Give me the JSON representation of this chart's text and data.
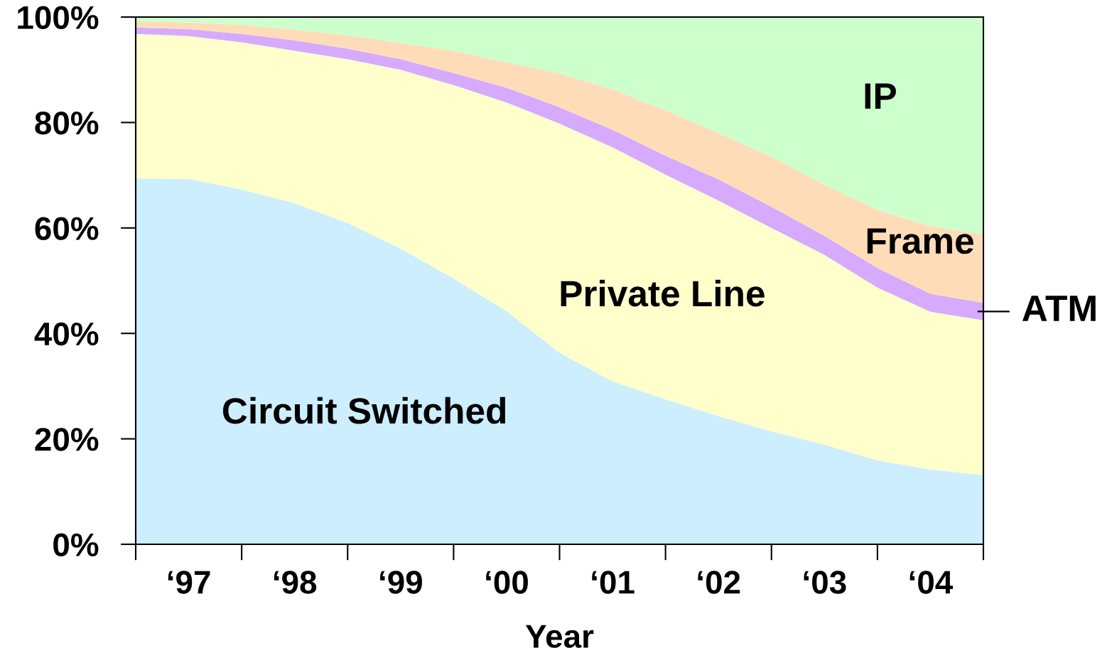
{
  "chart_data": {
    "type": "area",
    "stacked": true,
    "xlabel": "Year",
    "categories": [
      null,
      "‘97",
      null,
      "‘98",
      null,
      "‘99",
      null,
      "‘00",
      null,
      "‘01",
      null,
      "‘02",
      null,
      "‘03",
      null,
      "‘04",
      null
    ],
    "series": [
      {
        "name": "Circuit Switched",
        "color": "#cceeff",
        "values": [
          69.4,
          69.3,
          67.3,
          64.7,
          60.9,
          56.1,
          50.4,
          44.2,
          36.3,
          30.9,
          27.5,
          24.3,
          21.4,
          18.9,
          15.9,
          14.2,
          13.1
        ]
      },
      {
        "name": "Private Line",
        "color": "#ffffcc",
        "values": [
          27.4,
          27.1,
          27.9,
          28.9,
          31.1,
          33.9,
          36.7,
          39.6,
          43.5,
          44.4,
          42.6,
          40.9,
          38.6,
          36.0,
          32.8,
          29.9,
          29.4
        ]
      },
      {
        "name": "ATM",
        "color": "#d5aaff",
        "values": [
          1.2,
          1.3,
          1.6,
          2.0,
          2.0,
          2.0,
          2.3,
          2.8,
          3.1,
          3.3,
          3.6,
          4.0,
          4.0,
          3.6,
          3.7,
          3.4,
          3.3
        ]
      },
      {
        "name": "Frame",
        "color": "#ffdcb8",
        "values": [
          1.2,
          1.3,
          1.7,
          2.0,
          2.5,
          3.1,
          4.2,
          4.8,
          6.4,
          7.7,
          8.6,
          8.8,
          9.5,
          9.7,
          11.0,
          12.8,
          13.0
        ]
      },
      {
        "name": "IP",
        "color": "#ccffcc",
        "values": [
          0.8,
          1.0,
          1.5,
          2.4,
          3.5,
          4.9,
          6.4,
          8.6,
          10.7,
          13.7,
          17.7,
          22.0,
          26.5,
          31.8,
          36.6,
          39.7,
          41.2
        ]
      }
    ],
    "ylim": [
      0,
      100
    ],
    "yticks": [
      {
        "value": 0,
        "label": "0%"
      },
      {
        "value": 20,
        "label": "20%"
      },
      {
        "value": 40,
        "label": "40%"
      },
      {
        "value": 60,
        "label": "60%"
      },
      {
        "value": 80,
        "label": "80%"
      },
      {
        "value": 100,
        "label": "100%"
      }
    ]
  }
}
